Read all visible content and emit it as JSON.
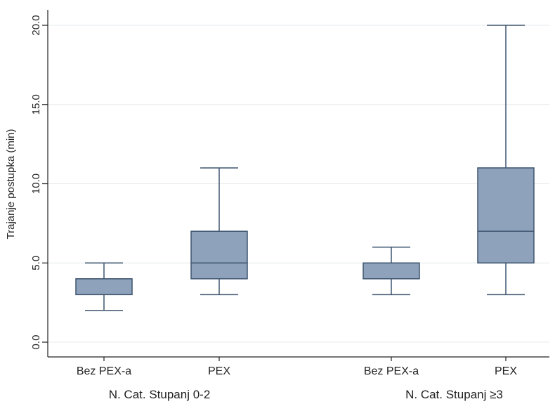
{
  "chart_data": {
    "type": "boxplot",
    "title": "",
    "ylabel": "Trajanje postupka (min)",
    "ylim": [
      0,
      20
    ],
    "yticks": [
      0,
      5,
      10,
      15,
      20
    ],
    "ytick_labels": [
      "0.0",
      "5.0",
      "10.0",
      "15.0",
      "20.0"
    ],
    "grid": true,
    "box_color": "#8ea2bb",
    "line_color": "#3e556f",
    "groups": [
      {
        "label": "N. Cat. Stupanj 0-2",
        "boxes": [
          {
            "label": "Bez PEX-a",
            "min": 2,
            "q1": 3,
            "median": 4,
            "q3": 4,
            "max": 5
          },
          {
            "label": "PEX",
            "min": 3,
            "q1": 4,
            "median": 5,
            "q3": 7,
            "max": 11
          }
        ]
      },
      {
        "label": "N. Cat. Stupanj ≥3",
        "boxes": [
          {
            "label": "Bez PEX-a",
            "min": 3,
            "q1": 4,
            "median": 4,
            "q3": 5,
            "max": 6
          },
          {
            "label": "PEX",
            "min": 3,
            "q1": 5,
            "median": 7,
            "q3": 11,
            "max": 20
          }
        ]
      }
    ]
  }
}
